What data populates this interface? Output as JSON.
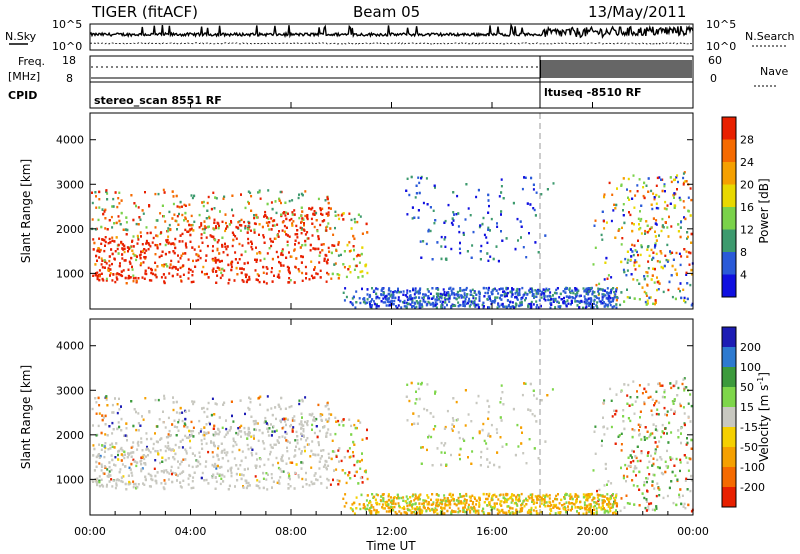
{
  "header": {
    "title": "TIGER (fitACF)",
    "beam": "Beam 05",
    "date": "13/May/2011"
  },
  "side_labels": {
    "nsky": "N.Sky",
    "freq": "Freq.",
    "mhz": "[MHz]",
    "cpid": "CPID",
    "nsearch": "N.Search",
    "nave": "Nave"
  },
  "strip_ticks": {
    "nsky_left": [
      "10^5",
      "10^0"
    ],
    "nsky_right": [
      "10^5",
      "10^0"
    ],
    "freq_left": [
      "18",
      "8"
    ],
    "nave_right": [
      "60",
      "0"
    ]
  },
  "cpid": {
    "mode1": "stereo_scan 8551 RF",
    "mode2": "ltuseq -8510 RF"
  },
  "colors": {
    "power": [
      "#1010e0",
      "#2a5ad8",
      "#3d9a6e",
      "#7ad24a",
      "#e8d800",
      "#f5a000",
      "#f56a00",
      "#e82000"
    ],
    "velocity_pos": [
      "#1c1cb4",
      "#2d7ad0",
      "#3c9a3c",
      "#7ed64a"
    ],
    "velocity_ground": "#c8c8c0",
    "velocity_neg": [
      "#f5d000",
      "#f5a000",
      "#f56a00",
      "#e82000"
    ]
  },
  "chart_data": [
    {
      "type": "heatmap",
      "name": "power",
      "ylabel": "Slant Range [km]",
      "yticks": [
        "1000",
        "2000",
        "3000",
        "4000"
      ],
      "ylim": [
        200,
        4600
      ],
      "xlim": [
        0,
        24
      ],
      "colorbar_label": "Power [dB]",
      "colorbar_ticks": [
        "28",
        "24",
        "20",
        "16",
        "12",
        "8",
        "4"
      ]
    },
    {
      "type": "heatmap",
      "name": "velocity",
      "ylabel": "Slant Range [km]",
      "yticks": [
        "1000",
        "2000",
        "3000",
        "4000"
      ],
      "ylim": [
        200,
        4600
      ],
      "xlim": [
        0,
        24
      ],
      "colorbar_label": "Velocity [m s",
      "colorbar_label_sup": "-1",
      "colorbar_ticks": [
        "200",
        "100",
        "50",
        "15",
        "-15",
        "-50",
        "-100",
        "-200"
      ],
      "xlabel": "Time UT",
      "xticks": [
        "00:00",
        "04:00",
        "08:00",
        "12:00",
        "16:00",
        "20:00",
        "00:00"
      ]
    }
  ]
}
